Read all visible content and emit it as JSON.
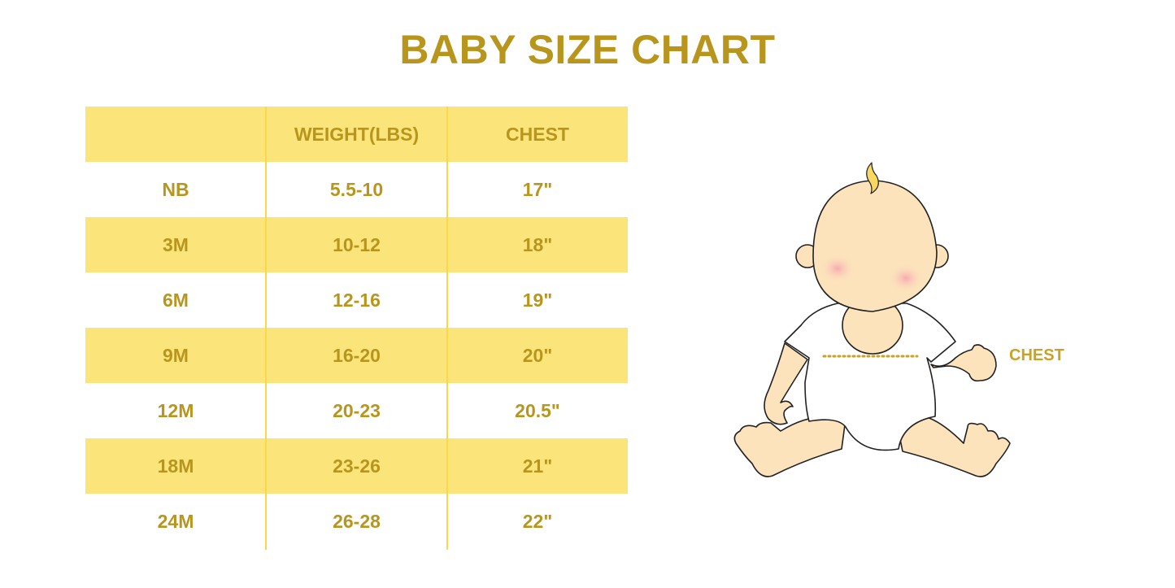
{
  "title": "BABY SIZE CHART",
  "table": {
    "headers": [
      "",
      "WEIGHT(LBS)",
      "CHEST"
    ],
    "rows": [
      [
        "NB",
        "5.5-10",
        "17\""
      ],
      [
        "3M",
        "10-12",
        "18\""
      ],
      [
        "6M",
        "12-16",
        "19\""
      ],
      [
        "9M",
        "16-20",
        "20\""
      ],
      [
        "12M",
        "20-23",
        "20.5\""
      ],
      [
        "18M",
        "23-26",
        "21\""
      ],
      [
        "24M",
        "26-28",
        "22\""
      ]
    ]
  },
  "illustration": {
    "chest_label": "CHEST",
    "icon": "baby-illustration"
  },
  "colors": {
    "accent_text": "#B8961E",
    "row_fill": "#FBE57B",
    "divider": "#F9D84A",
    "skin": "#FCE3BC"
  }
}
